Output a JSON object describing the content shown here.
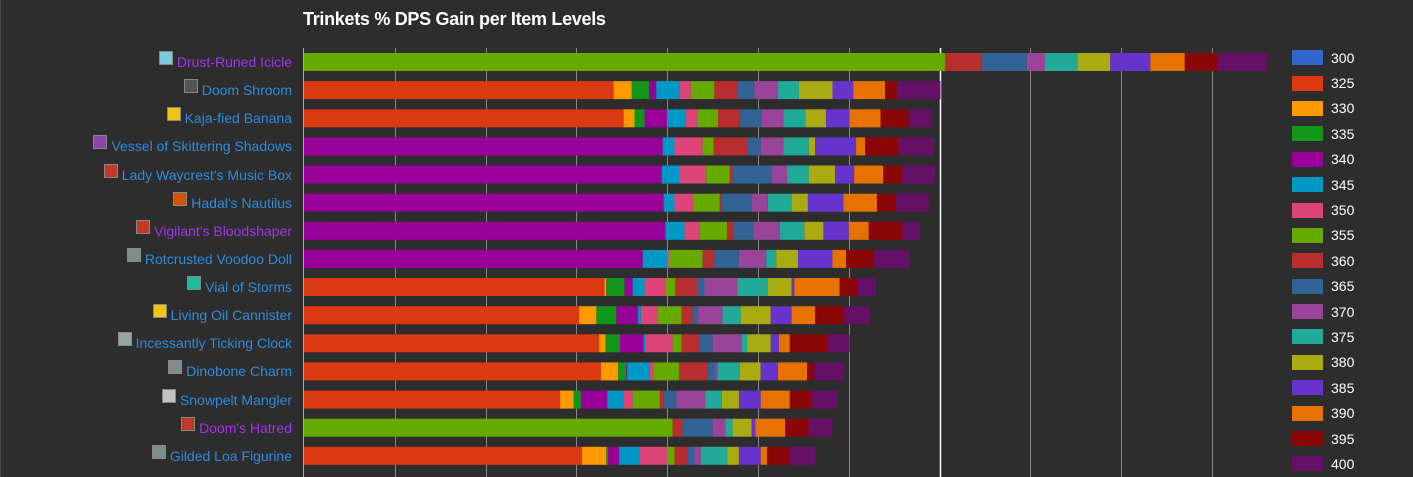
{
  "chart_data": {
    "type": "bar",
    "stacked": true,
    "orientation": "horizontal",
    "title": "Trinkets % DPS Gain per Item Levels",
    "xlabel": "",
    "ylabel": "",
    "xlim": [
      0,
      10.5
    ],
    "gridlines": [
      1,
      2,
      3,
      4,
      5,
      6,
      7,
      8,
      9,
      10
    ],
    "highlight_gridline": 7,
    "legend_position": "right",
    "series_names": [
      "300",
      "325",
      "330",
      "335",
      "340",
      "345",
      "350",
      "355",
      "360",
      "365",
      "370",
      "375",
      "380",
      "385",
      "390",
      "395",
      "400"
    ],
    "series_colors": [
      "#3366cc",
      "#dc3912",
      "#ff9900",
      "#109618",
      "#990099",
      "#0099c6",
      "#dd4477",
      "#66aa00",
      "#b82e2e",
      "#316395",
      "#994499",
      "#22aa99",
      "#aaaa11",
      "#6633cc",
      "#e67300",
      "#8b0707",
      "#651067"
    ],
    "rows": [
      {
        "name": "Drust-Runed Icicle",
        "quality": "epic",
        "icon_color": "#7ec8e3",
        "base_series": "355",
        "segments": {
          "355": 7.06,
          "360": 0.4,
          "365": 0.5,
          "370": 0.2,
          "375": 0.36,
          "380": 0.36,
          "385": 0.44,
          "390": 0.38,
          "395": 0.36,
          "400": 0.55
        }
      },
      {
        "name": "Doom Shroom",
        "quality": "rare",
        "icon_color": "#555555",
        "base_series": "325",
        "segments": {
          "325": 3.41,
          "330": 0.2,
          "335": 0.19,
          "340": 0.08,
          "345": 0.26,
          "350": 0.12,
          "355": 0.26,
          "360": 0.25,
          "365": 0.19,
          "370": 0.26,
          "375": 0.23,
          "380": 0.37,
          "385": 0.23,
          "390": 0.35,
          "395": 0.13,
          "400": 0.48
        }
      },
      {
        "name": "Kaja-fied Banana",
        "quality": "rare",
        "icon_color": "#f1c40f",
        "base_series": "325",
        "segments": {
          "325": 3.52,
          "330": 0.12,
          "335": 0.11,
          "340": 0.25,
          "345": 0.2,
          "350": 0.13,
          "355": 0.23,
          "360": 0.24,
          "365": 0.24,
          "370": 0.24,
          "375": 0.24,
          "380": 0.23,
          "385": 0.26,
          "390": 0.34,
          "395": 0.31,
          "400": 0.26
        }
      },
      {
        "name": "Vessel of Skittering Shadows",
        "quality": "rare",
        "icon_color": "#8e44ad",
        "base_series": "340",
        "segments": {
          "340": 3.95,
          "345": 0.13,
          "350": 0.31,
          "355": 0.12,
          "360": 0.38,
          "365": 0.14,
          "370": 0.25,
          "375": 0.28,
          "380": 0.07,
          "385": 0.45,
          "390": 0.1,
          "395": 0.37,
          "400": 0.39
        }
      },
      {
        "name": "Lady Waycrest's Music Box",
        "quality": "rare",
        "icon_color": "#c0392b",
        "base_series": "340",
        "segments": {
          "340": 3.94,
          "345": 0.19,
          "350": 0.3,
          "355": 0.26,
          "360": 0.03,
          "365": 0.43,
          "370": 0.17,
          "375": 0.24,
          "380": 0.29,
          "385": 0.21,
          "390": 0.32,
          "395": 0.21,
          "400": 0.36
        }
      },
      {
        "name": "Hadal's Nautilus",
        "quality": "rare",
        "icon_color": "#d35400",
        "base_series": "340",
        "segments": {
          "340": 3.96,
          "345": 0.12,
          "350": 0.21,
          "355": 0.29,
          "360": 0.02,
          "365": 0.33,
          "370": 0.18,
          "375": 0.26,
          "380": 0.18,
          "385": 0.39,
          "390": 0.37,
          "395": 0.21,
          "400": 0.36
        }
      },
      {
        "name": "Vigilant's Bloodshaper",
        "quality": "epic",
        "icon_color": "#c0392b",
        "base_series": "340",
        "segments": {
          "340": 3.98,
          "345": 0.21,
          "350": 0.17,
          "355": 0.3,
          "360": 0.07,
          "365": 0.22,
          "370": 0.29,
          "375": 0.27,
          "380": 0.21,
          "385": 0.28,
          "390": 0.22,
          "395": 0.37,
          "400": 0.19
        }
      },
      {
        "name": "Rotcrusted Voodoo Doll",
        "quality": "rare",
        "icon_color": "#7f8c8d",
        "base_series": "340",
        "segments": {
          "340": 3.73,
          "345": 0.27,
          "350": 0.02,
          "355": 0.37,
          "360": 0.13,
          "365": 0.27,
          "370": 0.3,
          "375": 0.11,
          "380": 0.24,
          "385": 0.38,
          "390": 0.15,
          "395": 0.31,
          "400": 0.39
        }
      },
      {
        "name": "Vial of Storms",
        "quality": "rare",
        "icon_color": "#1abc9c",
        "base_series": "325",
        "segments": {
          "325": 3.31,
          "330": 0.02,
          "335": 0.2,
          "340": 0.09,
          "345": 0.13,
          "350": 0.23,
          "355": 0.11,
          "360": 0.25,
          "365": 0.07,
          "370": 0.36,
          "375": 0.34,
          "380": 0.26,
          "385": 0.03,
          "390": 0.5,
          "395": 0.2,
          "400": 0.2
        }
      },
      {
        "name": "Living Oil Cannister",
        "quality": "rare",
        "icon_color": "#f1c40f",
        "base_series": "325",
        "segments": {
          "325": 3.03,
          "330": 0.19,
          "335": 0.22,
          "340": 0.24,
          "345": 0.03,
          "350": 0.18,
          "355": 0.27,
          "360": 0.12,
          "365": 0.06,
          "370": 0.27,
          "375": 0.2,
          "380": 0.33,
          "385": 0.23,
          "390": 0.26,
          "395": 0.32,
          "400": 0.28
        }
      },
      {
        "name": "Incessantly Ticking Clock",
        "quality": "rare",
        "icon_color": "#95a5a6",
        "base_series": "325",
        "segments": {
          "325": 3.25,
          "330": 0.07,
          "335": 0.16,
          "340": 0.26,
          "345": 0.02,
          "350": 0.3,
          "355": 0.1,
          "360": 0.2,
          "365": 0.14,
          "370": 0.32,
          "375": 0.06,
          "380": 0.26,
          "385": 0.09,
          "390": 0.12,
          "395": 0.42,
          "400": 0.24
        }
      },
      {
        "name": "Dinobone Charm",
        "quality": "rare",
        "icon_color": "#7f8c8d",
        "base_series": "325",
        "segments": {
          "325": 3.27,
          "330": 0.19,
          "335": 0.09,
          "340": 0.01,
          "345": 0.25,
          "350": 0.04,
          "355": 0.28,
          "360": 0.31,
          "365": 0.09,
          "370": 0.03,
          "375": 0.24,
          "380": 0.23,
          "385": 0.19,
          "390": 0.32,
          "395": 0.08,
          "400": 0.33
        }
      },
      {
        "name": "Snowpelt Mangler",
        "quality": "rare",
        "icon_color": "#bdc3c7",
        "base_series": "325",
        "segments": {
          "325": 2.82,
          "330": 0.15,
          "335": 0.08,
          "340": 0.29,
          "345": 0.18,
          "350": 0.1,
          "355": 0.3,
          "360": 0.04,
          "365": 0.14,
          "370": 0.32,
          "375": 0.18,
          "380": 0.19,
          "385": 0.24,
          "390": 0.32,
          "395": 0.24,
          "400": 0.29
        }
      },
      {
        "name": "Doom's Hatred",
        "quality": "epic",
        "icon_color": "#c0392b",
        "base_series": "355",
        "segments": {
          "355": 4.06,
          "360": 0.11,
          "365": 0.33,
          "370": 0.14,
          "375": 0.08,
          "380": 0.21,
          "385": 0.04,
          "390": 0.33,
          "395": 0.26,
          "400": 0.26
        }
      },
      {
        "name": "Gilded Loa Figurine",
        "quality": "rare",
        "icon_color": "#7f8c8d",
        "base_series": "325",
        "segments": {
          "325": 3.06,
          "330": 0.27,
          "335": 0.02,
          "340": 0.12,
          "345": 0.23,
          "350": 0.3,
          "355": 0.08,
          "360": 0.14,
          "365": 0.08,
          "370": 0.07,
          "375": 0.29,
          "380": 0.13,
          "385": 0.24,
          "390": 0.07,
          "395": 0.25,
          "400": 0.28
        }
      }
    ]
  },
  "quality_colors": {
    "rare": "#2e8cdc",
    "epic": "#a335ee"
  },
  "background_color": "#2d2d2d",
  "gridline_color": "#888888",
  "highlight_gridline_color": "#ffffff"
}
